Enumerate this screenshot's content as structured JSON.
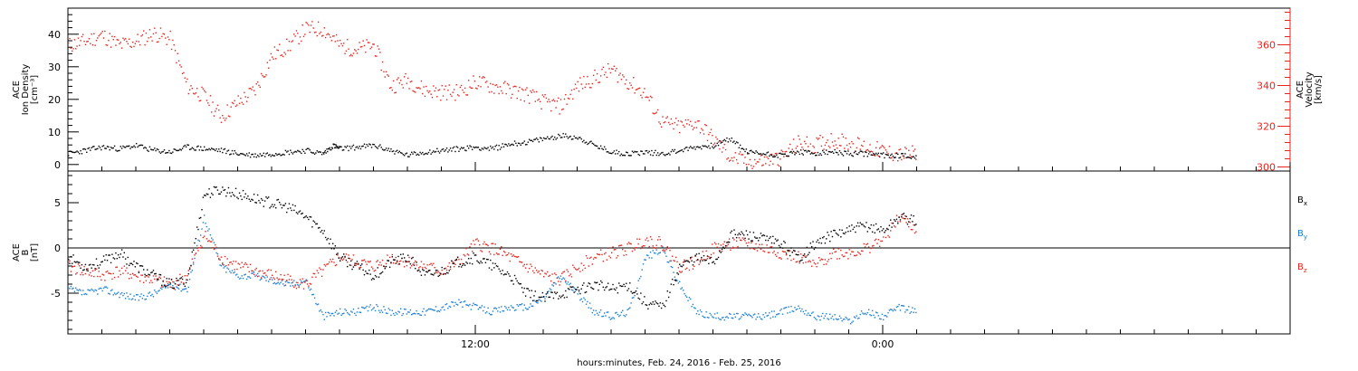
{
  "chart_data": [
    {
      "type": "scatter",
      "panel": "top",
      "ylabel_lines": [
        "ACE",
        "Ion Density",
        "[cm⁻³]"
      ],
      "y2label_lines": [
        "ACE",
        "Velocity",
        "[km/s]"
      ],
      "ylim": [
        -2,
        48
      ],
      "y2lim": [
        298,
        378
      ],
      "yticks": [
        0,
        10,
        20,
        30,
        40
      ],
      "y2ticks": [
        300,
        320,
        340,
        360
      ],
      "grid": false,
      "series": [
        {
          "name": "Density",
          "axis": "left",
          "color": "#000000",
          "x": [
            0,
            0.5,
            1,
            1.5,
            2,
            2.5,
            3,
            3.5,
            4,
            4.5,
            5,
            5.5,
            6,
            6.5,
            7,
            7.5,
            7.8,
            8,
            8.5,
            9,
            9.5,
            10,
            10.5,
            11,
            11.5,
            12,
            12.5,
            13,
            13.5,
            14,
            14.5,
            15,
            15.5,
            16,
            16.5,
            17,
            17.5,
            18,
            18.5,
            19,
            19.5,
            20,
            20.5,
            21,
            21.5,
            22,
            22.5,
            23,
            23.5,
            24,
            24.5,
            25
          ],
          "y": [
            3.5,
            4.5,
            5.5,
            5,
            6,
            4.5,
            4,
            5.5,
            5,
            4.5,
            3.5,
            3,
            3.5,
            4,
            4.5,
            3.5,
            6,
            5,
            5.5,
            6,
            4.5,
            3,
            4,
            4.5,
            5,
            5.5,
            5,
            6.5,
            7,
            8,
            9,
            8.5,
            6,
            4,
            3.5,
            4,
            3.5,
            4.5,
            5.5,
            6,
            8,
            4,
            3.5,
            3,
            4,
            3.5,
            4,
            3.5,
            3.5,
            3,
            3,
            2.5
          ]
        },
        {
          "name": "Velocity",
          "axis": "right",
          "color": "#e8231d",
          "x": [
            0,
            0.5,
            1,
            1.5,
            2,
            2.5,
            3,
            3.5,
            4,
            4.5,
            5,
            5.5,
            6,
            6.5,
            7,
            7.5,
            8,
            8.5,
            9,
            9.5,
            10,
            10.5,
            11,
            11.5,
            12,
            12.5,
            13,
            13.5,
            14,
            14.5,
            15,
            15.5,
            16,
            16.5,
            17,
            17.5,
            18,
            18.5,
            19,
            19.5,
            20,
            20.5,
            21,
            21.5,
            22,
            22.5,
            23,
            23.5,
            24,
            24.5,
            25
          ],
          "y": [
            360,
            362,
            365,
            360,
            362,
            366,
            363,
            340,
            335,
            325,
            332,
            338,
            355,
            360,
            368,
            368,
            360,
            358,
            360,
            340,
            343,
            338,
            337,
            337,
            342,
            340,
            338,
            336,
            332,
            330,
            340,
            344,
            348,
            342,
            336,
            322,
            320,
            322,
            314,
            305,
            303,
            303,
            305,
            312,
            311,
            314,
            312,
            310,
            308,
            306,
            307
          ]
        }
      ]
    },
    {
      "type": "scatter",
      "panel": "bottom",
      "ylabel_lines": [
        "ACE",
        "B",
        "[nT]"
      ],
      "ylim": [
        -9.5,
        8.5
      ],
      "yticks": [
        -5,
        0,
        5
      ],
      "zero_line": true,
      "grid": false,
      "xlabel": "hours:minutes, Feb. 24, 2016 - Feb. 25, 2016",
      "x_tick_labels": [
        {
          "x": 12,
          "label": "12:00"
        },
        {
          "x": 24,
          "label": "0:00"
        }
      ],
      "x_range_hours": [
        0,
        36
      ],
      "series": [
        {
          "name": "Bx",
          "color": "#000000",
          "x": [
            0,
            0.5,
            1,
            1.5,
            2,
            2.5,
            3,
            3.5,
            4,
            4.5,
            5,
            5.5,
            6,
            6.5,
            7,
            7.5,
            8,
            8.5,
            9,
            9.5,
            10,
            10.5,
            11,
            11.5,
            12,
            12.5,
            13,
            13.5,
            14,
            14.5,
            15,
            15.5,
            16,
            16.5,
            17,
            17.5,
            18,
            18.5,
            19,
            19.5,
            20,
            20.5,
            21,
            21.5,
            22,
            22.5,
            23,
            23.5,
            24,
            24.5,
            25
          ],
          "y": [
            -1,
            -2,
            -1.5,
            -0.5,
            -2,
            -3,
            -4,
            -3.5,
            6,
            6.5,
            6,
            5.5,
            5,
            4.5,
            3.5,
            2,
            -1,
            -2,
            -3,
            -1.5,
            -1,
            -3,
            -2.5,
            -1.5,
            -1,
            -2,
            -3,
            -5,
            -5.5,
            -5,
            -4.5,
            -4,
            -4.5,
            -4,
            -6,
            -6.5,
            -2,
            -1,
            -1.5,
            1.5,
            1.5,
            1,
            0.5,
            -1,
            0.5,
            1.5,
            2,
            2.5,
            2,
            3.5,
            3
          ]
        },
        {
          "name": "By",
          "color": "#1a7ed4",
          "x": [
            0,
            0.5,
            1,
            1.5,
            2,
            2.5,
            3,
            3.5,
            4,
            4.5,
            5,
            5.5,
            6,
            6.5,
            7,
            7.5,
            8,
            8.5,
            9,
            9.5,
            10,
            10.5,
            11,
            11.5,
            12,
            12.5,
            13,
            13.5,
            14,
            14.5,
            15,
            15.5,
            16,
            16.5,
            17,
            17.5,
            18,
            18.5,
            19,
            19.5,
            20,
            20.5,
            21,
            21.5,
            22,
            22.5,
            23,
            23.5,
            24,
            24.5,
            25
          ],
          "y": [
            -4.5,
            -5,
            -4.5,
            -5,
            -5.5,
            -5,
            -4,
            -4.5,
            3.5,
            -2,
            -3,
            -3,
            -3.5,
            -4,
            -3.5,
            -7.5,
            -7,
            -7,
            -6.5,
            -7,
            -7,
            -7,
            -6.5,
            -6,
            -6.5,
            -7,
            -6.5,
            -6.5,
            -5.5,
            -3,
            -5,
            -7,
            -7.5,
            -7,
            -1,
            0,
            -4,
            -7,
            -7.5,
            -7.5,
            -7.5,
            -7.5,
            -7,
            -6.5,
            -7.5,
            -7.5,
            -8,
            -7,
            -7.5,
            -6.5,
            -7
          ]
        },
        {
          "name": "Bz",
          "color": "#e8231d",
          "x": [
            0,
            0.5,
            1,
            1.5,
            2,
            2.5,
            3,
            3.5,
            4,
            4.5,
            5,
            5.5,
            6,
            6.5,
            7,
            7.5,
            8,
            8.5,
            9,
            9.5,
            10,
            10.5,
            11,
            11.5,
            12,
            12.5,
            13,
            13.5,
            14,
            14.5,
            15,
            15.5,
            16,
            16.5,
            17,
            17.5,
            18,
            18.5,
            19,
            19.5,
            20,
            20.5,
            21,
            21.5,
            22,
            22.5,
            23,
            23.5,
            24,
            24.5,
            25
          ],
          "y": [
            -2,
            -2.5,
            -3,
            -2.5,
            -3,
            -3.5,
            -4,
            -3,
            1.5,
            -1,
            -2,
            -2.5,
            -3,
            -3.5,
            -4,
            -2.5,
            -1,
            -1.5,
            -2,
            -1,
            -1.5,
            -2,
            -2.5,
            -1.5,
            0.5,
            0,
            -1,
            -2,
            -3,
            -3.5,
            -2,
            -1,
            -0.5,
            0,
            1,
            0.5,
            -2,
            -1.5,
            0,
            0.5,
            0.5,
            0,
            -0.5,
            -1,
            -2,
            -0.5,
            -0.5,
            0,
            1,
            3.5,
            2
          ]
        }
      ]
    }
  ],
  "legend": [
    {
      "main": "B",
      "sub": "x",
      "color": "#000000"
    },
    {
      "main": "B",
      "sub": "y",
      "color": "#1a7ed4"
    },
    {
      "main": "B",
      "sub": "z",
      "color": "#e8231d"
    }
  ]
}
